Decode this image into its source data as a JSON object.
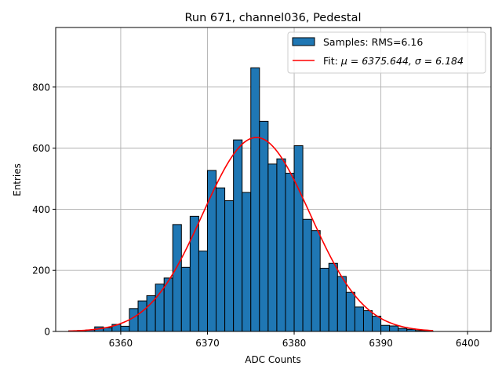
{
  "chart_data": {
    "type": "bar",
    "title": "Run 671, channel036, Pedestal",
    "xlabel": "ADC Counts",
    "ylabel": "Entries",
    "xlim": [
      6352.5,
      6402.7
    ],
    "ylim": [
      0,
      995
    ],
    "xticks": [
      6360,
      6370,
      6380,
      6390,
      6400
    ],
    "yticks": [
      0,
      200,
      400,
      600,
      800
    ],
    "grid": true,
    "legend_position": "top-right",
    "histogram": {
      "name": "Samples: RMS=6.16",
      "color": "#1f77b4",
      "bin_width": 1,
      "bin_edges_start": 6354,
      "counts": [
        2,
        3,
        5,
        15,
        12,
        23,
        17,
        75,
        100,
        117,
        155,
        175,
        350,
        210,
        377,
        263,
        527,
        470,
        428,
        627,
        455,
        863,
        688,
        548,
        565,
        518,
        608,
        367,
        330,
        207,
        223,
        180,
        128,
        80,
        68,
        50,
        20,
        18,
        10,
        7,
        3,
        2
      ]
    },
    "fit": {
      "name": "Fit: μ = 6375.644, σ = 6.184",
      "label_prefix": "Fit: ",
      "mu_label": "μ = 6375.644, ",
      "sigma_label": "σ = 6.184",
      "color": "#ff0000",
      "mu": 6375.644,
      "sigma": 6.184,
      "amplitude": 635,
      "x_range": [
        6354,
        6396
      ]
    }
  }
}
